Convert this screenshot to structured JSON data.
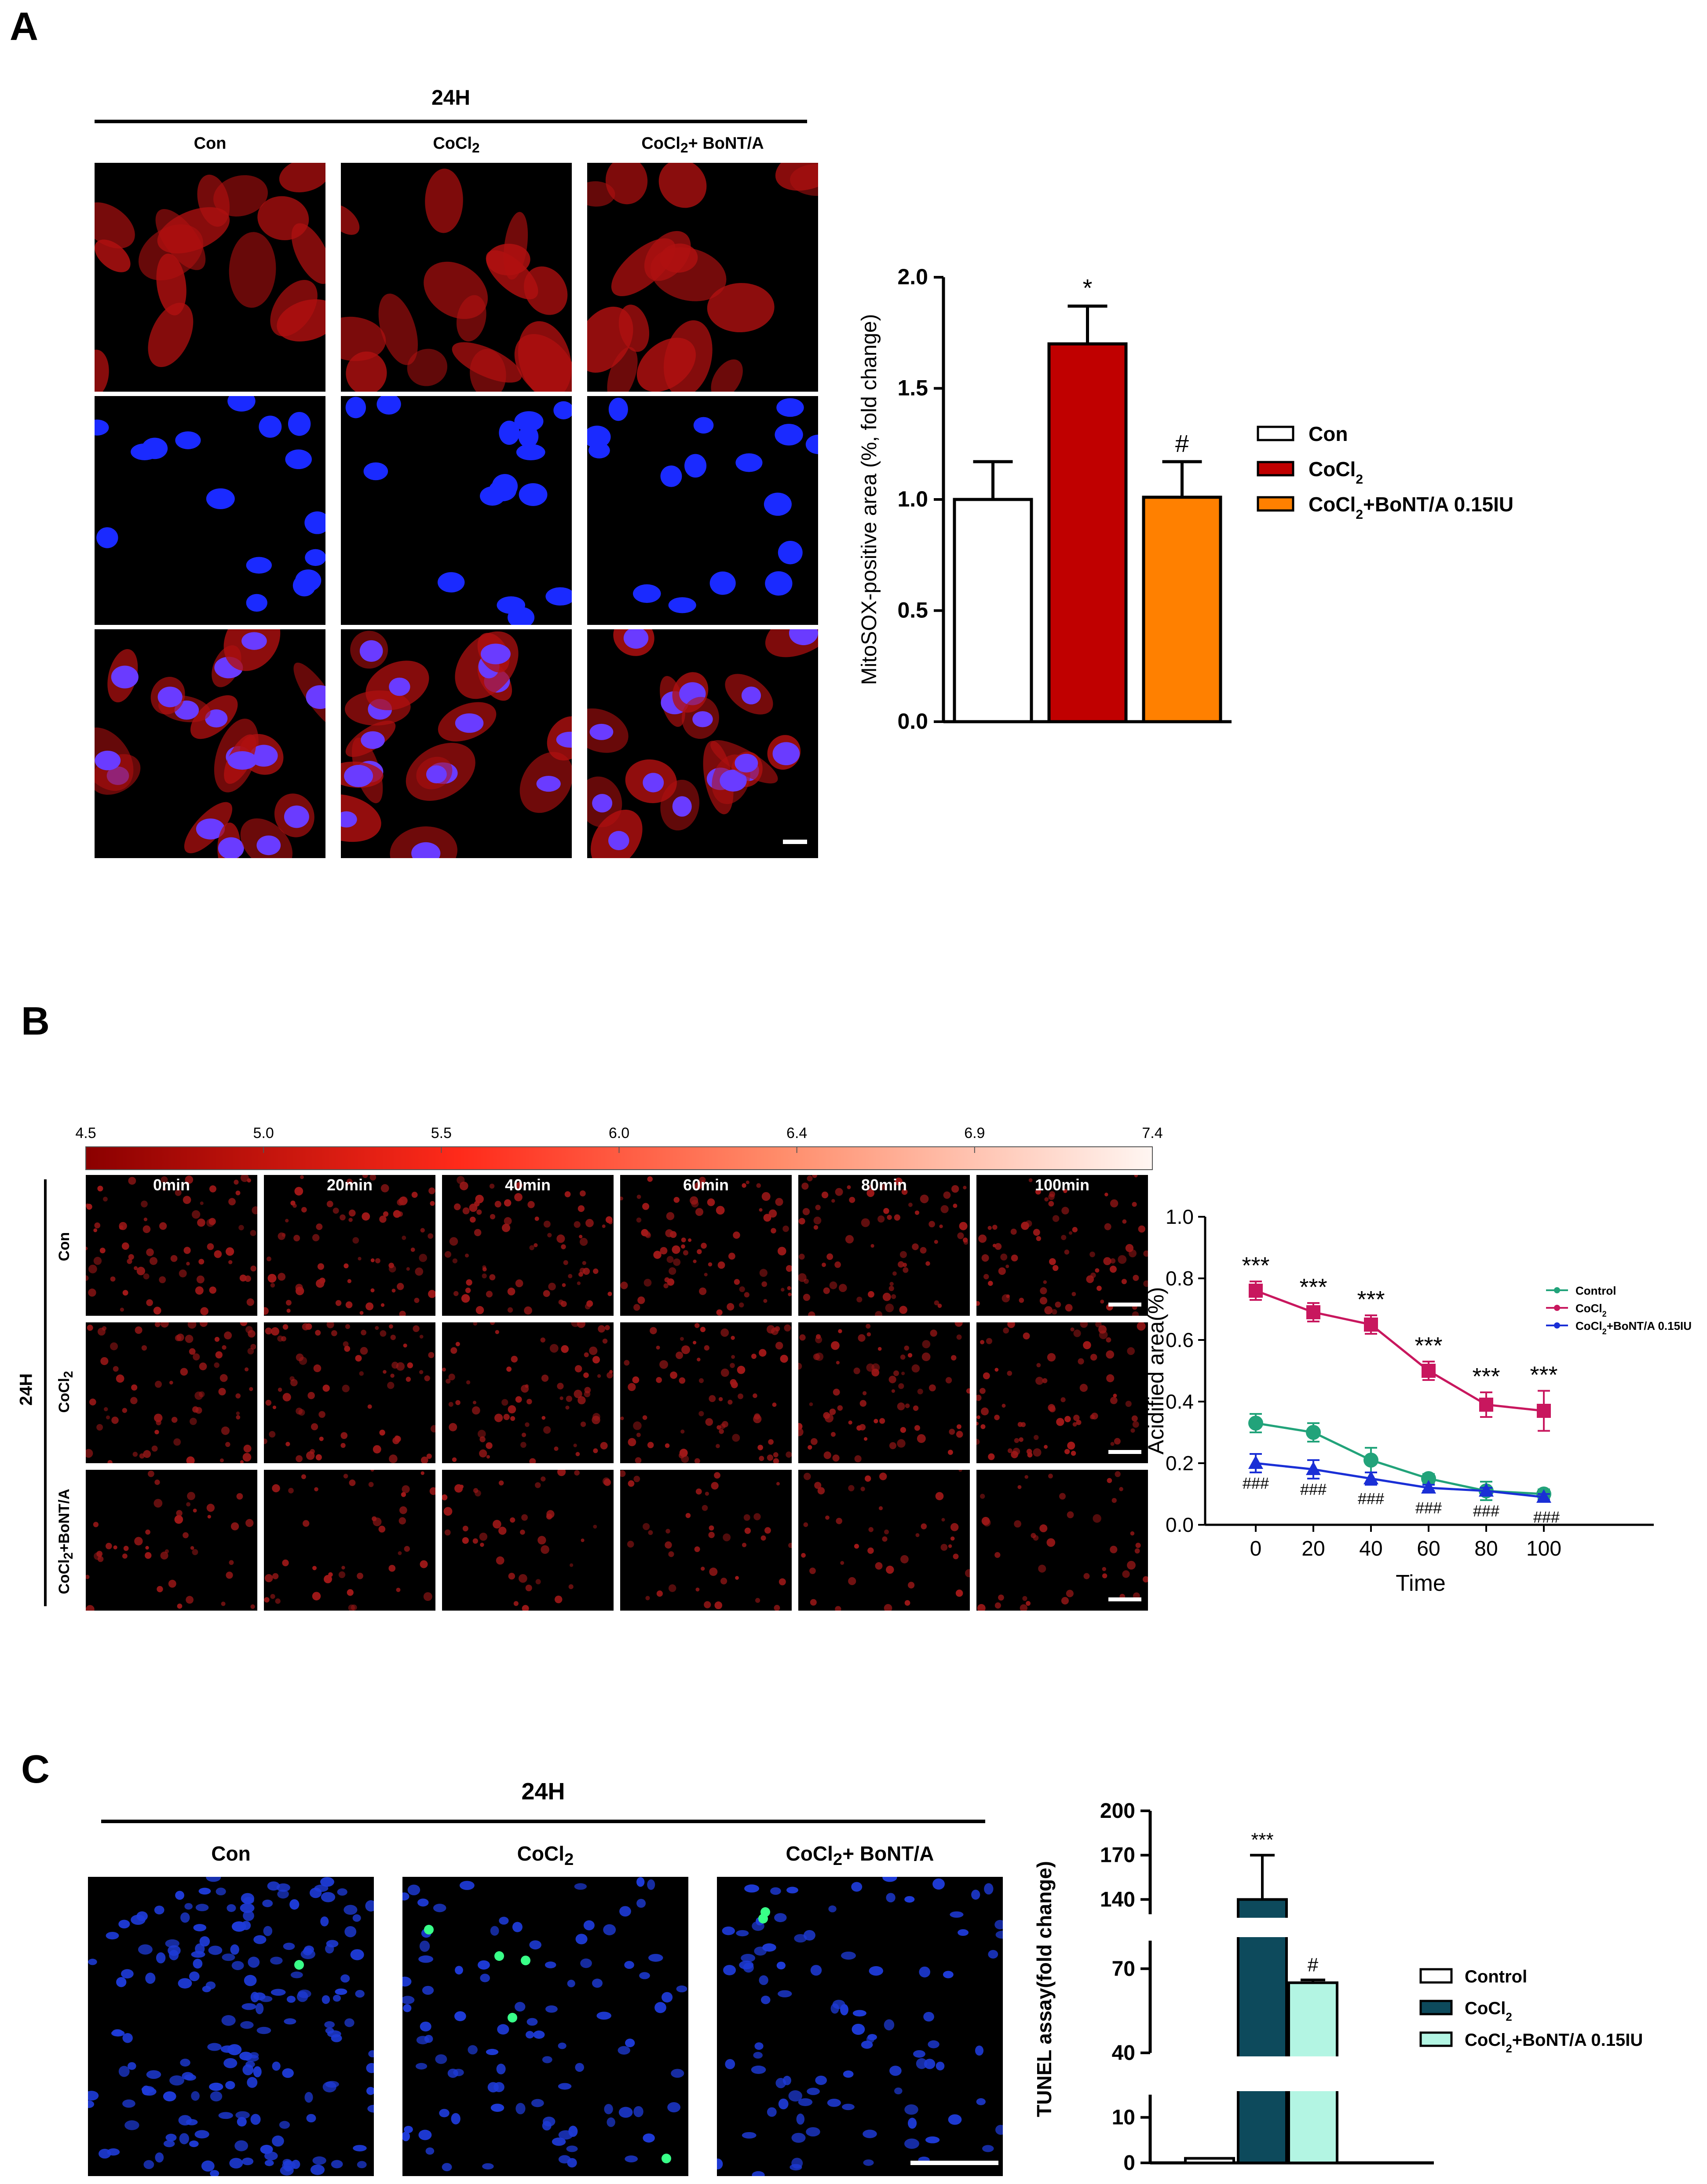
{
  "panels": {
    "A": {
      "letter": "A",
      "time_label": "24H",
      "groups": [
        "Con",
        "CoCl",
        "CoCl"
      ],
      "group_subs": [
        "",
        "2",
        "2"
      ],
      "group_suffix": [
        "",
        "",
        "+ BoNT/A"
      ]
    },
    "B": {
      "letter": "B",
      "time_label": "24H",
      "colorbar_ticks": [
        "4.5",
        "5.0",
        "5.5",
        "6.0",
        "6.4",
        "6.9",
        "7.4"
      ],
      "time_columns": [
        "0min",
        "20min",
        "40min",
        "60min",
        "80min",
        "100min"
      ],
      "row_labels": [
        "Con",
        "CoCl",
        "CoCl"
      ],
      "row_subs": [
        "",
        "2",
        "2"
      ],
      "row_suffix": [
        "",
        "",
        "+BoNT/A"
      ]
    },
    "C": {
      "letter": "C",
      "time_label": "24H",
      "groups": [
        "Con",
        "CoCl",
        "CoCl"
      ],
      "group_subs": [
        "",
        "2",
        "2"
      ],
      "group_suffix": [
        "",
        "",
        "+ BoNT/A"
      ]
    }
  },
  "chart_data": [
    {
      "id": "A",
      "type": "bar",
      "ylabel": "MitoSOX-positive area (%, fold change)",
      "ylim": [
        0,
        2.0
      ],
      "yticks": [
        "0.0",
        "0.5",
        "1.0",
        "1.5",
        "2.0"
      ],
      "categories": [
        "Con",
        "CoCl2",
        "CoCl2+BoNT/A 0.15IU"
      ],
      "values": [
        1.0,
        1.7,
        1.01
      ],
      "errors": [
        0.17,
        0.17,
        0.16
      ],
      "annotations": [
        "",
        "*",
        "#"
      ],
      "legend": [
        {
          "text": "Con",
          "sub": "",
          "suffix": "",
          "color": "#ffffff"
        },
        {
          "text": "CoCl",
          "sub": "2",
          "suffix": "",
          "color": "#c00000"
        },
        {
          "text": "CoCl",
          "sub": "2",
          "suffix": "+BoNT/A 0.15IU",
          "color": "#ff8000"
        }
      ],
      "legend_position": "right",
      "colors": [
        "#ffffff",
        "#c00000",
        "#ff8000"
      ]
    },
    {
      "id": "B",
      "type": "line",
      "xlabel": "Time",
      "ylabel": "Acidified area(%)",
      "ylim": [
        0,
        1.0
      ],
      "yticks": [
        "0.0",
        "0.2",
        "0.4",
        "0.6",
        "0.8",
        "1.0"
      ],
      "x": [
        0,
        20,
        40,
        60,
        80,
        100
      ],
      "xticks": [
        "0",
        "20",
        "40",
        "60",
        "80",
        "100"
      ],
      "series": [
        {
          "name": "Control",
          "values": [
            0.33,
            0.3,
            0.21,
            0.15,
            0.11,
            0.1
          ],
          "errors": [
            0.03,
            0.03,
            0.04,
            0.015,
            0.03,
            0.015
          ],
          "color": "#22a37a",
          "marker": "circle"
        },
        {
          "name": "CoCl2",
          "values": [
            0.76,
            0.69,
            0.65,
            0.5,
            0.39,
            0.37
          ],
          "errors": [
            0.03,
            0.03,
            0.03,
            0.03,
            0.04,
            0.065
          ],
          "color": "#c8175e",
          "marker": "square"
        },
        {
          "name": "CoCl2+BoNT/A 0.15IU",
          "values": [
            0.2,
            0.18,
            0.15,
            0.12,
            0.11,
            0.09
          ],
          "errors": [
            0.03,
            0.03,
            0.02,
            0.01,
            0.01,
            0.01
          ],
          "color": "#1a2fd6",
          "marker": "triangle"
        }
      ],
      "legend": [
        {
          "text": "Control",
          "sub": "",
          "suffix": ""
        },
        {
          "text": "CoCl",
          "sub": "2",
          "suffix": ""
        },
        {
          "text": "CoCl",
          "sub": "2",
          "suffix": "+BoNT/A 0.15IU"
        }
      ],
      "legend_position": "top-right",
      "top_annotations": [
        "***",
        "***",
        "***",
        "***",
        "***",
        "***"
      ],
      "bottom_annotations": [
        "###",
        "###",
        "###",
        "###",
        "###",
        "###"
      ]
    },
    {
      "id": "C",
      "type": "bar",
      "ylabel": "TUNEL assay(fold change)",
      "yticks": [
        "0",
        "10",
        "40",
        "70",
        "140",
        "170",
        "200"
      ],
      "axis_segments": [
        [
          0,
          15
        ],
        [
          40,
          80
        ],
        [
          130,
          200
        ]
      ],
      "categories": [
        "Control",
        "CoCl2",
        "CoCl2+BoNT/A 0.15IU"
      ],
      "values": [
        1,
        140,
        65
      ],
      "errors": [
        0.3,
        30,
        1
      ],
      "annotations": [
        "",
        "***",
        "#"
      ],
      "legend": [
        {
          "text": "Control",
          "sub": "",
          "suffix": "",
          "color": "#ffffff"
        },
        {
          "text": "CoCl",
          "sub": "2",
          "suffix": "",
          "color": "#0d4a5c"
        },
        {
          "text": "CoCl",
          "sub": "2",
          "suffix": "+BoNT/A 0.15IU",
          "color": "#b3f5e3"
        }
      ],
      "legend_position": "right",
      "colors": [
        "#ffffff",
        "#0d4a5c",
        "#b3f5e3"
      ]
    }
  ]
}
